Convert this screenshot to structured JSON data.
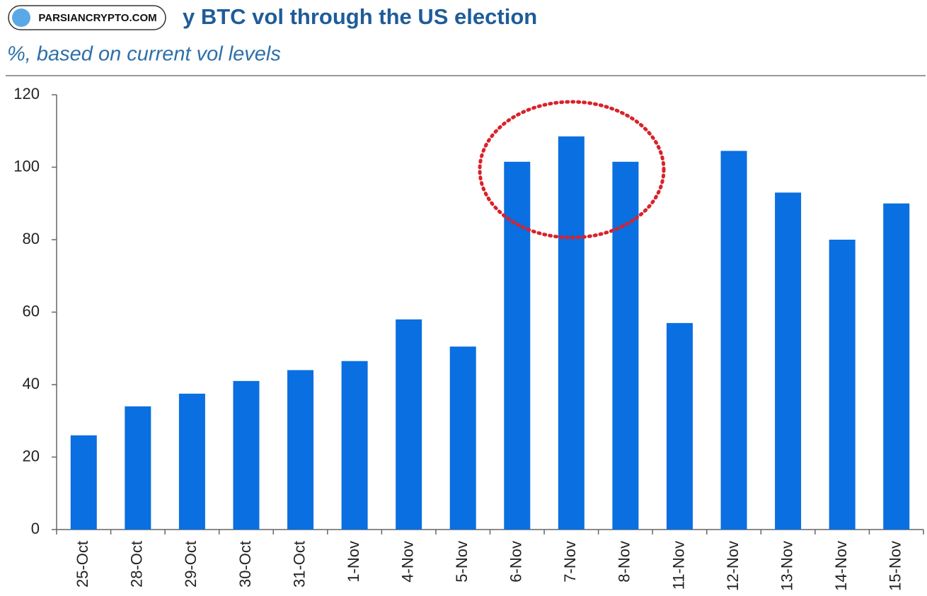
{
  "chart_data": {
    "type": "bar",
    "title": "y BTC vol through the US election",
    "subtitle": "%, based on current vol levels",
    "watermark": "PARSIANCRYPTO.COM",
    "categories": [
      "25-Oct",
      "28-Oct",
      "29-Oct",
      "30-Oct",
      "31-Oct",
      "1-Nov",
      "4-Nov",
      "5-Nov",
      "6-Nov",
      "7-Nov",
      "8-Nov",
      "11-Nov",
      "12-Nov",
      "13-Nov",
      "14-Nov",
      "15-Nov"
    ],
    "values": [
      26,
      34,
      37.5,
      41,
      44,
      46.5,
      58,
      50.5,
      101.5,
      108.5,
      101.5,
      57,
      104.5,
      93,
      80,
      90
    ],
    "color": "#0a6fe0",
    "ylim": [
      0,
      120
    ],
    "yticks": [
      0,
      20,
      40,
      60,
      80,
      100,
      120
    ],
    "grid": false
  }
}
